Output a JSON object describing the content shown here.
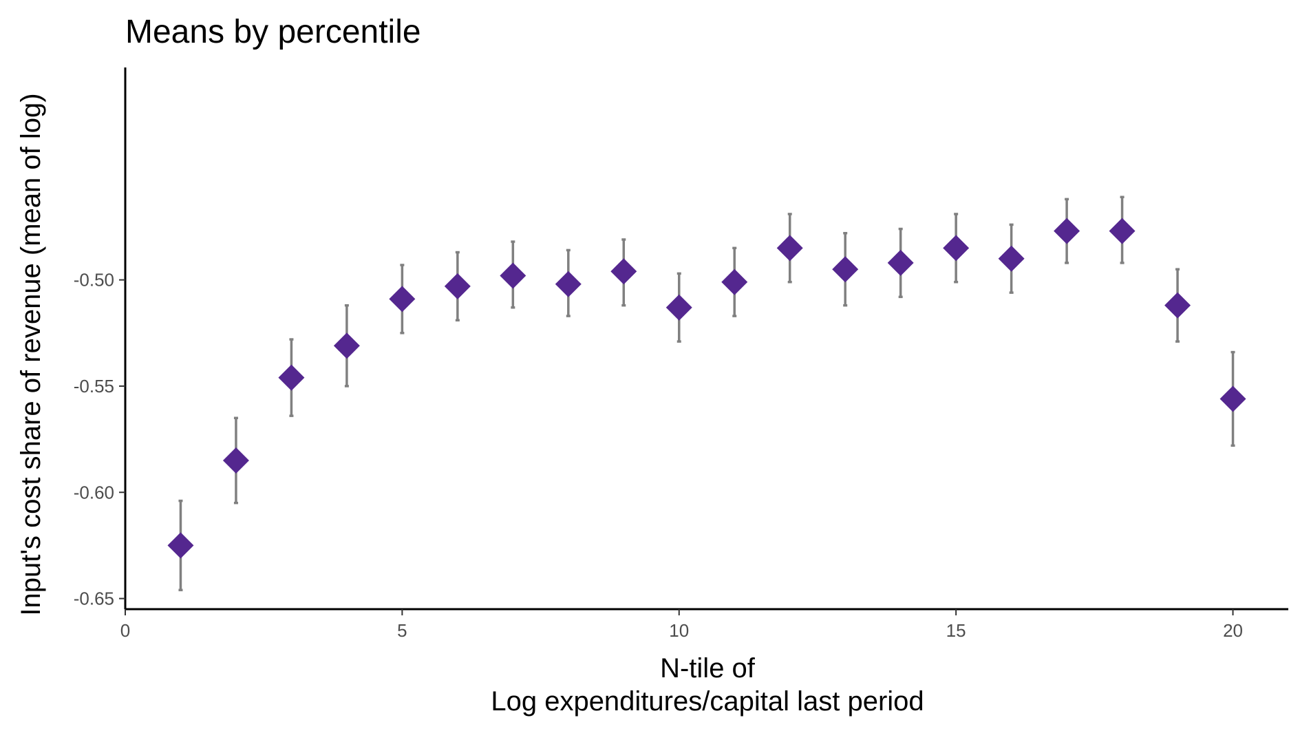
{
  "chart_data": {
    "type": "scatter",
    "title": "Means by percentile",
    "xlabel_line1": "N-tile of",
    "xlabel_line2": "Log expenditures/capital last period",
    "ylabel": "Input's cost share of revenue (mean of log)",
    "xlim": [
      0,
      21
    ],
    "ylim": [
      -0.655,
      -0.4
    ],
    "x_ticks": [
      0,
      5,
      10,
      15,
      20
    ],
    "x_tick_labels": [
      "0",
      "5",
      "10",
      "15",
      "20"
    ],
    "y_ticks": [
      -0.65,
      -0.6,
      -0.55,
      -0.5
    ],
    "y_tick_labels": [
      "-0.65",
      "-0.60",
      "-0.55",
      "-0.50"
    ],
    "grid": false,
    "legend": "none",
    "point_shape": "diamond",
    "colors": {
      "point": "#54278f",
      "errorbar": "#808080",
      "axis": "#000000"
    },
    "points": [
      {
        "x": 1,
        "y": -0.625,
        "lo": -0.646,
        "hi": -0.604
      },
      {
        "x": 2,
        "y": -0.585,
        "lo": -0.605,
        "hi": -0.565
      },
      {
        "x": 3,
        "y": -0.546,
        "lo": -0.564,
        "hi": -0.528
      },
      {
        "x": 4,
        "y": -0.531,
        "lo": -0.55,
        "hi": -0.512
      },
      {
        "x": 5,
        "y": -0.509,
        "lo": -0.525,
        "hi": -0.493
      },
      {
        "x": 6,
        "y": -0.503,
        "lo": -0.519,
        "hi": -0.487
      },
      {
        "x": 7,
        "y": -0.498,
        "lo": -0.513,
        "hi": -0.482
      },
      {
        "x": 8,
        "y": -0.502,
        "lo": -0.517,
        "hi": -0.486
      },
      {
        "x": 9,
        "y": -0.496,
        "lo": -0.512,
        "hi": -0.481
      },
      {
        "x": 10,
        "y": -0.513,
        "lo": -0.529,
        "hi": -0.497
      },
      {
        "x": 11,
        "y": -0.501,
        "lo": -0.517,
        "hi": -0.485
      },
      {
        "x": 12,
        "y": -0.485,
        "lo": -0.501,
        "hi": -0.469
      },
      {
        "x": 13,
        "y": -0.495,
        "lo": -0.512,
        "hi": -0.478
      },
      {
        "x": 14,
        "y": -0.492,
        "lo": -0.508,
        "hi": -0.476
      },
      {
        "x": 15,
        "y": -0.485,
        "lo": -0.501,
        "hi": -0.469
      },
      {
        "x": 16,
        "y": -0.49,
        "lo": -0.506,
        "hi": -0.474
      },
      {
        "x": 17,
        "y": -0.477,
        "lo": -0.492,
        "hi": -0.462
      },
      {
        "x": 18,
        "y": -0.477,
        "lo": -0.492,
        "hi": -0.461
      },
      {
        "x": 19,
        "y": -0.512,
        "lo": -0.529,
        "hi": -0.495
      },
      {
        "x": 20,
        "y": -0.556,
        "lo": -0.578,
        "hi": -0.534
      }
    ]
  }
}
